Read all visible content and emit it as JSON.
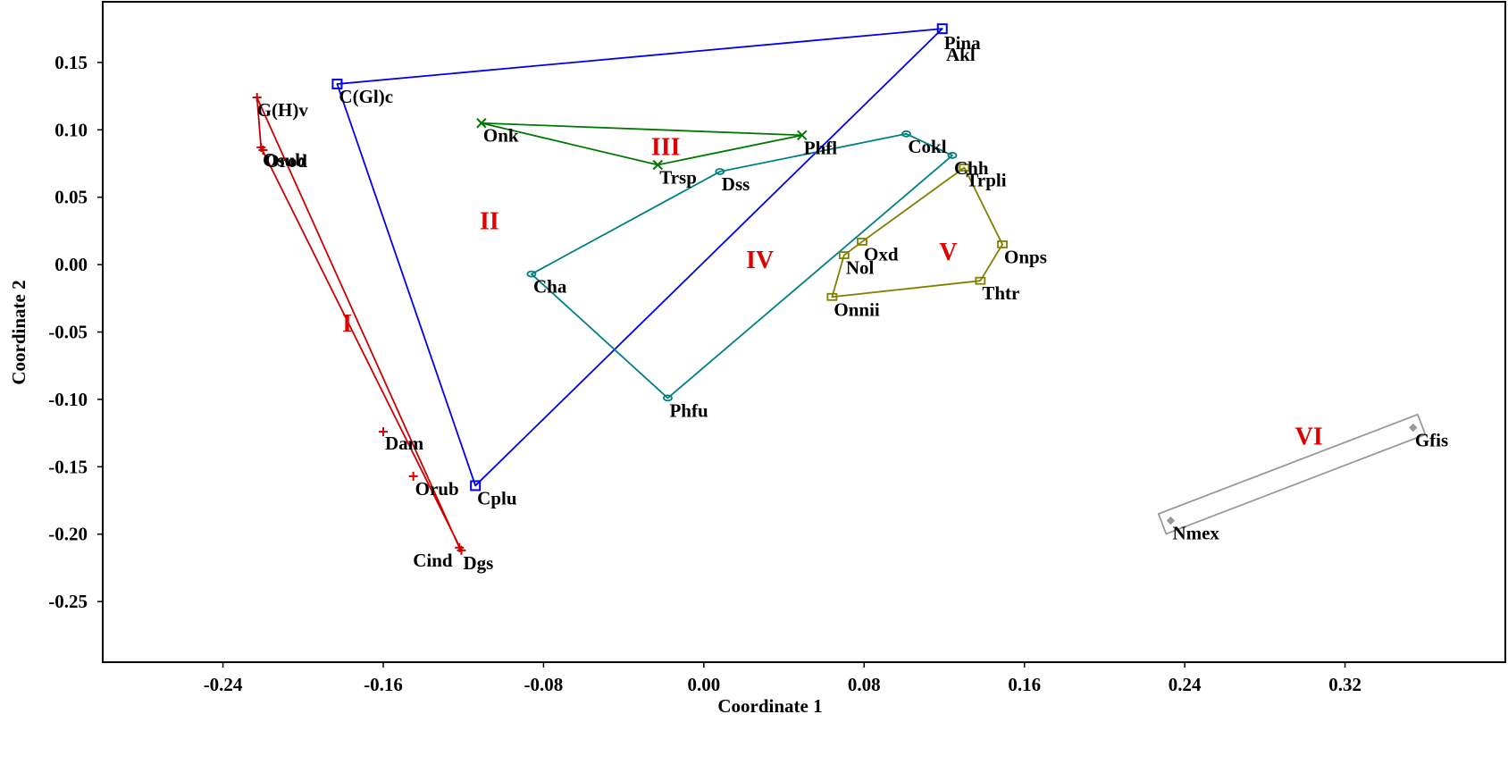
{
  "chart_data": {
    "type": "scatter",
    "xlabel": "Coordinate 1",
    "ylabel": "Coordinate 2",
    "xlim": [
      -0.3,
      0.4
    ],
    "ylim": [
      -0.295,
      0.195
    ],
    "xticks": [
      {
        "value": -0.24,
        "label": "-0.24"
      },
      {
        "value": -0.16,
        "label": "-0.16"
      },
      {
        "value": -0.08,
        "label": "-0.08"
      },
      {
        "value": 0.0,
        "label": "0.00"
      },
      {
        "value": 0.08,
        "label": "0.08"
      },
      {
        "value": 0.16,
        "label": "0.16"
      },
      {
        "value": 0.24,
        "label": "0.24"
      },
      {
        "value": 0.32,
        "label": "0.32"
      }
    ],
    "yticks": [
      {
        "value": 0.15,
        "label": "0.15"
      },
      {
        "value": 0.1,
        "label": "0.10"
      },
      {
        "value": 0.05,
        "label": "0.05"
      },
      {
        "value": 0.0,
        "label": "0.00"
      },
      {
        "value": -0.05,
        "label": "-0.05"
      },
      {
        "value": -0.1,
        "label": "-0.10"
      },
      {
        "value": -0.15,
        "label": "-0.15"
      },
      {
        "value": -0.2,
        "label": "-0.20"
      },
      {
        "value": -0.25,
        "label": "-0.25"
      }
    ],
    "grid": false,
    "groups": [
      {
        "id": "I",
        "label": "I",
        "label_pos": [
          -0.178,
          -0.043
        ],
        "color": "#cc0000",
        "marker": "plus",
        "shape": "polygon",
        "hull": [
          "G(H)v",
          "Cind",
          "Dgs",
          "Osub"
        ],
        "points": [
          {
            "name": "G(H)v",
            "x": -0.223,
            "y": 0.124,
            "lx": 0,
            "ly": -1
          },
          {
            "name": "Osub",
            "x": -0.221,
            "y": 0.087,
            "lx": 2,
            "ly": -1
          },
          {
            "name": "Orod",
            "x": -0.22,
            "y": 0.085,
            "lx": 2,
            "ly": -3
          },
          {
            "name": "Dam",
            "x": -0.16,
            "y": -0.124,
            "lx": 2,
            "ly": -2
          },
          {
            "name": "Orub",
            "x": -0.145,
            "y": -0.157,
            "lx": 2,
            "ly": -1
          },
          {
            "name": "Cind",
            "x": -0.122,
            "y": -0.21,
            "lx": -52,
            "ly": -1
          },
          {
            "name": "Dgs",
            "x": -0.121,
            "y": -0.212,
            "lx": 2,
            "ly": -1
          }
        ]
      },
      {
        "id": "II",
        "label": "II",
        "label_pos": [
          -0.107,
          0.033
        ],
        "color": "#0000ee",
        "marker": "square",
        "shape": "polygon",
        "hull": [
          "C(Gl)c",
          "Pina",
          "Cplu"
        ],
        "points": [
          {
            "name": "C(Gl)c",
            "x": -0.183,
            "y": 0.134,
            "lx": 2,
            "ly": -1
          },
          {
            "name": "Pina",
            "x": 0.119,
            "y": 0.175,
            "lx": 2,
            "ly": 1
          },
          {
            "name": "Akl",
            "x": null,
            "y": null,
            "lx": 0,
            "ly": 0,
            "text_only_at": [
              0.12,
              0.158
            ]
          },
          {
            "name": "Cplu",
            "x": -0.114,
            "y": -0.164,
            "lx": 2,
            "ly": -1
          }
        ]
      },
      {
        "id": "III",
        "label": "III",
        "label_pos": [
          -0.019,
          0.088
        ],
        "color": "#007700",
        "marker": "x",
        "shape": "polygon",
        "hull": [
          "Onk",
          "Phfl",
          "Trsp"
        ],
        "points": [
          {
            "name": "Onk",
            "x": -0.111,
            "y": 0.105,
            "lx": 2,
            "ly": -1
          },
          {
            "name": "Phfl",
            "x": 0.049,
            "y": 0.096,
            "lx": 2,
            "ly": -1
          },
          {
            "name": "Trsp",
            "x": -0.023,
            "y": 0.074,
            "lx": 2,
            "ly": -1
          }
        ]
      },
      {
        "id": "IV",
        "label": "IV",
        "label_pos": [
          0.028,
          0.004
        ],
        "color": "#008080",
        "marker": "circle",
        "shape": "polygon",
        "hull": [
          "Cha",
          "Dss",
          "Cokl",
          "Chh",
          "Phfu"
        ],
        "points": [
          {
            "name": "Dss",
            "x": 0.008,
            "y": 0.069,
            "lx": 2,
            "ly": -1
          },
          {
            "name": "Cokl",
            "x": 0.101,
            "y": 0.097,
            "lx": 2,
            "ly": -1
          },
          {
            "name": "Chh",
            "x": 0.124,
            "y": 0.081,
            "lx": 2,
            "ly": -1
          },
          {
            "name": "Cha",
            "x": -0.086,
            "y": -0.007,
            "lx": 2,
            "ly": -1
          },
          {
            "name": "Phfu",
            "x": -0.018,
            "y": -0.099,
            "lx": 2,
            "ly": -1
          }
        ]
      },
      {
        "id": "V",
        "label": "V",
        "label_pos": [
          0.122,
          0.01
        ],
        "color": "#808000",
        "marker": "square_small",
        "shape": "polygon",
        "hull": [
          "Trpli",
          "Onps",
          "Thtr",
          "Onnii",
          "Nol",
          "Oxd"
        ],
        "points": [
          {
            "name": "Trpli",
            "x": 0.13,
            "y": 0.072,
            "lx": 2,
            "ly": -1
          },
          {
            "name": "Oxd",
            "x": 0.079,
            "y": 0.017,
            "lx": 2,
            "ly": -1
          },
          {
            "name": "Nol",
            "x": 0.07,
            "y": 0.007,
            "lx": 2,
            "ly": -1
          },
          {
            "name": "Onps",
            "x": 0.149,
            "y": 0.015,
            "lx": 2,
            "ly": -1
          },
          {
            "name": "Thtr",
            "x": 0.138,
            "y": -0.012,
            "lx": 2,
            "ly": -1
          },
          {
            "name": "Onnii",
            "x": 0.064,
            "y": -0.024,
            "lx": 2,
            "ly": -1
          }
        ]
      },
      {
        "id": "VI",
        "label": "VI",
        "label_pos": [
          0.302,
          -0.127
        ],
        "color": "#999999",
        "marker": "diamond",
        "shape": "band",
        "hull": [
          "Nmex",
          "Gfis"
        ],
        "points": [
          {
            "name": "Nmex",
            "x": 0.233,
            "y": -0.19,
            "lx": 2,
            "ly": -1
          },
          {
            "name": "Gfis",
            "x": 0.354,
            "y": -0.121,
            "lx": 2,
            "ly": -1
          }
        ]
      }
    ]
  }
}
